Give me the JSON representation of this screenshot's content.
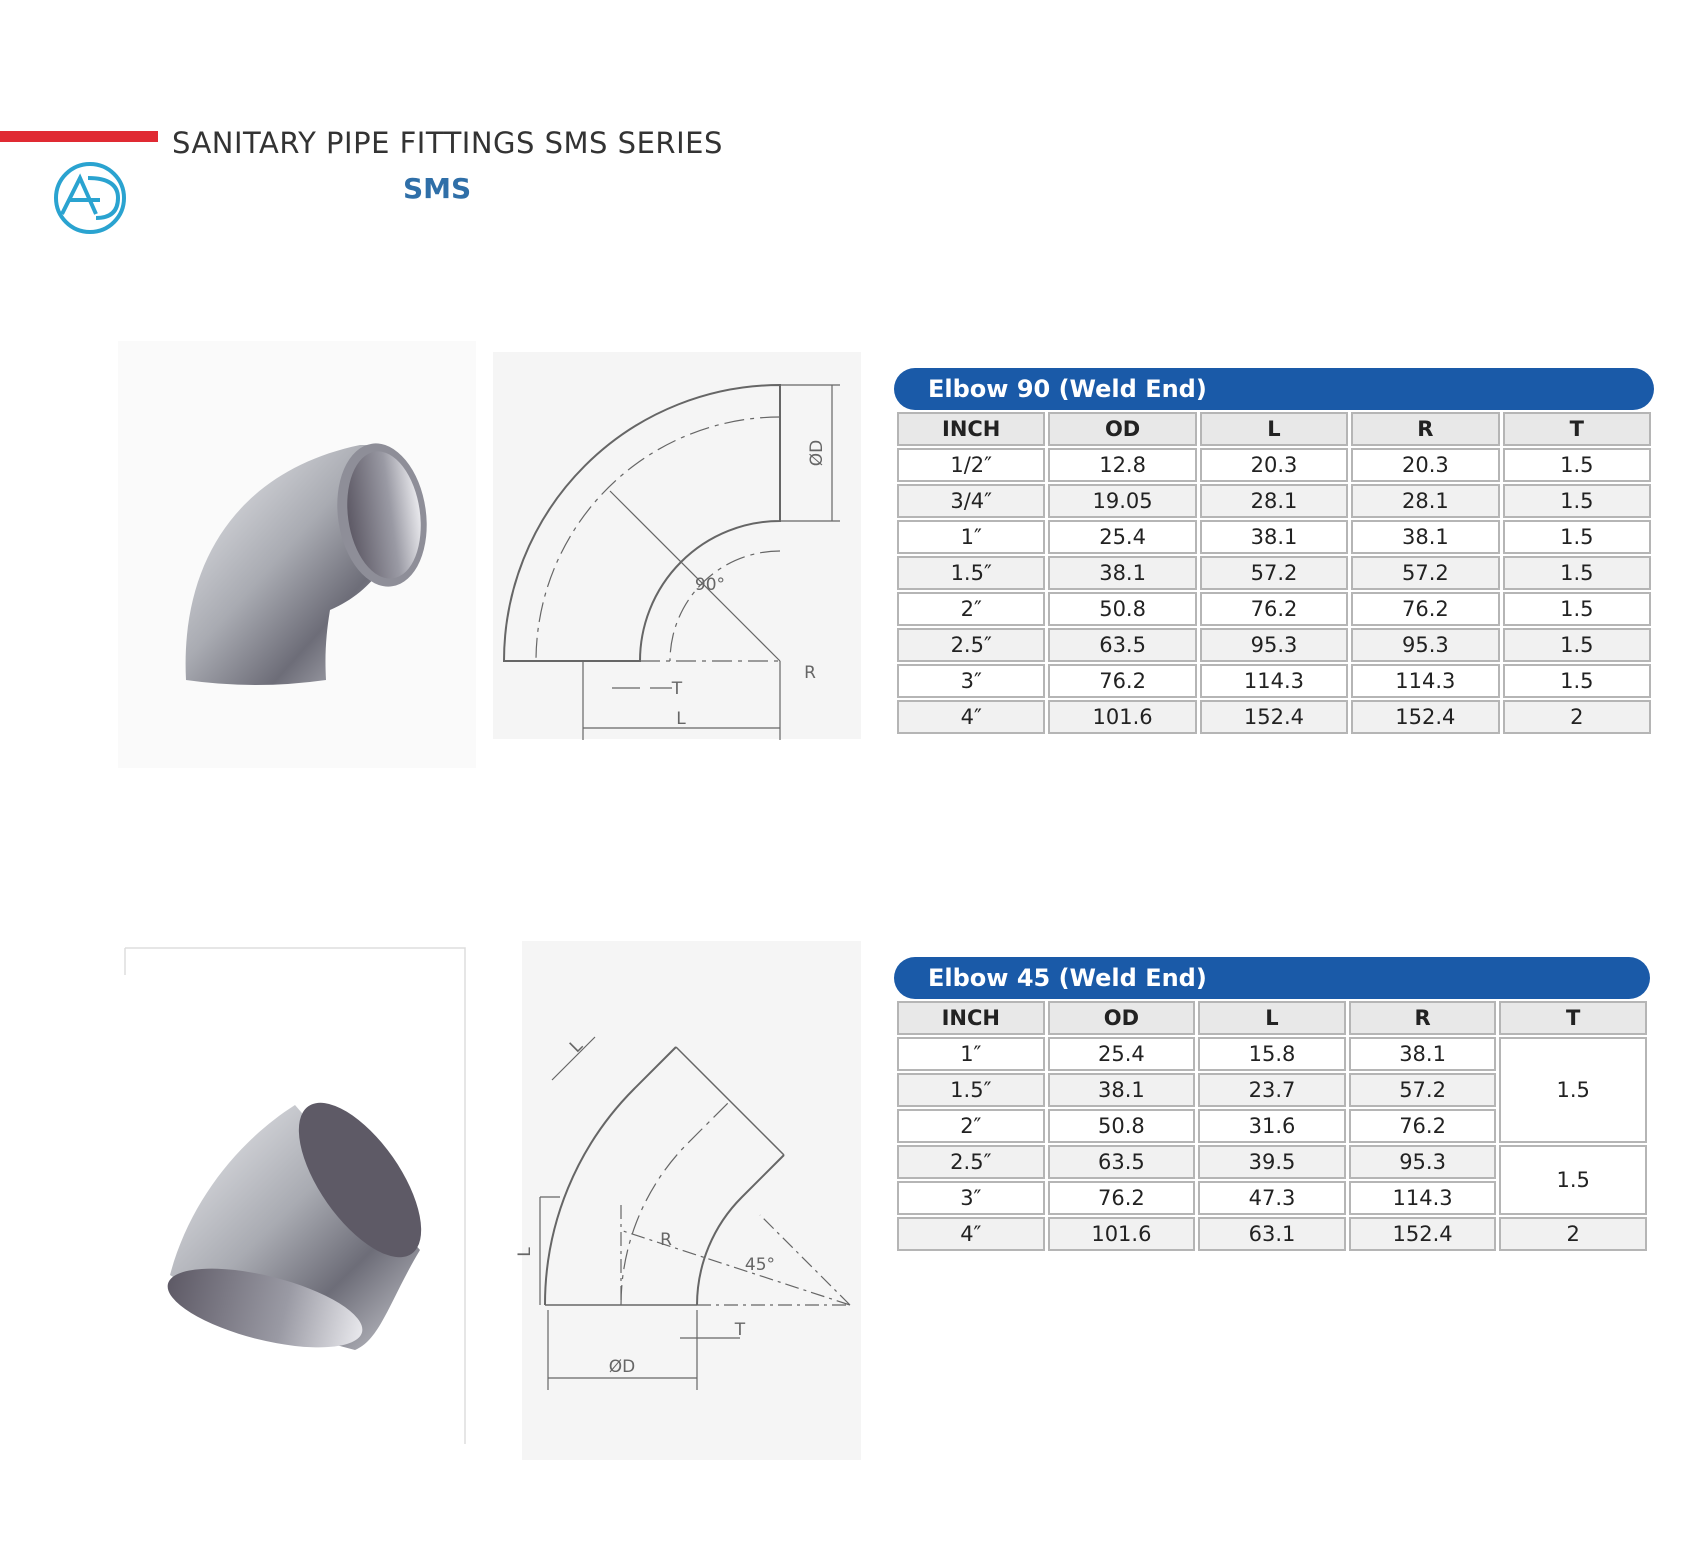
{
  "header": {
    "title": "SANITARY PIPE FITTINGS SMS SERIES",
    "subtitle": "SMS"
  },
  "sections": [
    {
      "table": {
        "title": "Elbow 90 (Weld End)",
        "columns": [
          "INCH",
          "OD",
          "L",
          "R",
          "T"
        ],
        "rows": [
          [
            "1/2″",
            "12.8",
            "20.3",
            "20.3",
            "1.5"
          ],
          [
            "3/4″",
            "19.05",
            "28.1",
            "28.1",
            "1.5"
          ],
          [
            "1″",
            "25.4",
            "38.1",
            "38.1",
            "1.5"
          ],
          [
            "1.5″",
            "38.1",
            "57.2",
            "57.2",
            "1.5"
          ],
          [
            "2″",
            "50.8",
            "76.2",
            "76.2",
            "1.5"
          ],
          [
            "2.5″",
            "63.5",
            "95.3",
            "95.3",
            "1.5"
          ],
          [
            "3″",
            "76.2",
            "114.3",
            "114.3",
            "1.5"
          ],
          [
            "4″",
            "101.6",
            "152.4",
            "152.4",
            "2"
          ]
        ]
      },
      "diagram": {
        "labels": [
          "ØD",
          "90°",
          "R",
          "T",
          "L"
        ]
      }
    },
    {
      "table": {
        "title": "Elbow 45 (Weld End)",
        "columns": [
          "INCH",
          "OD",
          "L",
          "R",
          "T"
        ],
        "rows": [
          [
            "1″",
            "25.4",
            "15.8",
            "38.1",
            "1.5"
          ],
          [
            "1.5″",
            "38.1",
            "23.7",
            "57.2"
          ],
          [
            "2″",
            "50.8",
            "31.6",
            "76.2"
          ],
          [
            "2.5″",
            "63.5",
            "39.5",
            "95.3",
            "1.5"
          ],
          [
            "3″",
            "76.2",
            "47.3",
            "114.3"
          ],
          [
            "4″",
            "101.6",
            "63.1",
            "152.4",
            "2"
          ]
        ]
      },
      "diagram": {
        "labels": [
          "L",
          "L",
          "R",
          "45°",
          "T",
          "ØD"
        ]
      }
    }
  ]
}
